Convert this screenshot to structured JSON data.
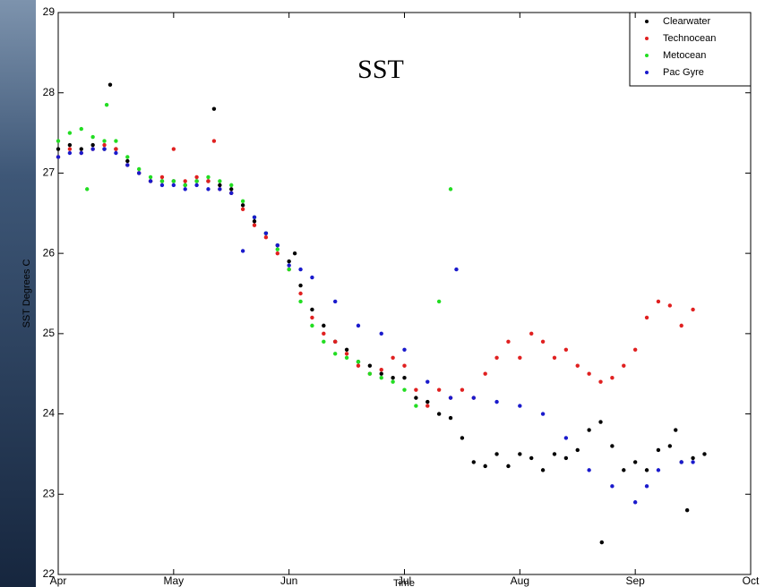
{
  "chart_data": {
    "type": "scatter",
    "title": "SST",
    "x_label": "Time",
    "y_label": "SST Degrees C",
    "xlim": [
      4,
      10
    ],
    "xticks": [
      {
        "value": 4,
        "label": "Apr"
      },
      {
        "value": 5,
        "label": "May"
      },
      {
        "value": 6,
        "label": "Jun"
      },
      {
        "value": 7,
        "label": "Jul"
      },
      {
        "value": 8,
        "label": "Aug"
      },
      {
        "value": 9,
        "label": "Sep"
      },
      {
        "value": 10,
        "label": "Oct"
      }
    ],
    "ylim": [
      22,
      29
    ],
    "yticks": [
      22,
      23,
      24,
      25,
      26,
      27,
      28,
      29
    ],
    "legend": "upper right",
    "series": [
      {
        "name": "Clearwater",
        "color": "#000000",
        "x": [
          4.0,
          4.1,
          4.2,
          4.3,
          4.4,
          4.45,
          4.5,
          4.6,
          4.7,
          4.8,
          4.9,
          5.0,
          5.1,
          5.2,
          5.3,
          5.35,
          5.4,
          5.5,
          5.6,
          5.7,
          5.8,
          5.9,
          6.0,
          6.05,
          6.1,
          6.2,
          6.3,
          6.4,
          6.5,
          6.6,
          6.7,
          6.8,
          6.9,
          7.0,
          7.1,
          7.2,
          7.3,
          7.4,
          7.5,
          7.6,
          7.7,
          7.8,
          7.9,
          8.0,
          8.1,
          8.2,
          8.3,
          8.4,
          8.5,
          8.6,
          8.7,
          8.71,
          8.8,
          8.9,
          9.0,
          9.1,
          9.2,
          9.3,
          9.35,
          9.4,
          9.45,
          9.5,
          9.6
        ],
        "values": [
          27.3,
          27.35,
          27.3,
          27.35,
          27.3,
          28.1,
          27.3,
          27.15,
          27.0,
          26.9,
          26.9,
          26.9,
          26.85,
          26.9,
          26.9,
          27.8,
          26.85,
          26.8,
          26.6,
          26.4,
          26.25,
          26.1,
          25.9,
          26.0,
          25.6,
          25.3,
          25.1,
          24.9,
          24.8,
          24.65,
          24.6,
          24.5,
          24.45,
          24.45,
          24.2,
          24.15,
          24.0,
          23.95,
          23.7,
          23.4,
          23.35,
          23.5,
          23.35,
          23.5,
          23.45,
          23.3,
          23.5,
          23.45,
          23.55,
          23.8,
          23.9,
          22.4,
          23.6,
          23.3,
          23.4,
          23.3,
          23.55,
          23.6,
          23.8,
          23.4,
          22.8,
          23.45,
          23.5
        ]
      },
      {
        "name": "Technocean",
        "color": "#e02020",
        "x": [
          4.0,
          4.1,
          4.2,
          4.3,
          4.4,
          4.5,
          4.6,
          4.7,
          4.8,
          4.9,
          5.0,
          5.1,
          5.2,
          5.3,
          5.35,
          5.4,
          5.5,
          5.6,
          5.7,
          5.8,
          5.9,
          6.0,
          6.1,
          6.2,
          6.3,
          6.4,
          6.5,
          6.6,
          6.7,
          6.8,
          6.9,
          7.0,
          7.1,
          7.2,
          7.3,
          7.4,
          7.5,
          7.6,
          7.7,
          7.8,
          7.9,
          8.0,
          8.1,
          8.2,
          8.3,
          8.4,
          8.5,
          8.6,
          8.7,
          8.8,
          8.9,
          9.0,
          9.1,
          9.2,
          9.3,
          9.4,
          9.5
        ],
        "values": [
          27.2,
          27.3,
          27.25,
          27.3,
          27.35,
          27.3,
          27.1,
          27.0,
          26.9,
          26.95,
          27.3,
          26.9,
          26.95,
          26.9,
          27.4,
          26.8,
          26.75,
          26.55,
          26.35,
          26.2,
          26.0,
          25.8,
          25.5,
          25.2,
          25.0,
          24.9,
          24.75,
          24.6,
          24.5,
          24.55,
          24.7,
          24.6,
          24.3,
          24.1,
          24.3,
          24.2,
          24.3,
          24.2,
          24.5,
          24.7,
          24.9,
          24.7,
          25.0,
          24.9,
          24.7,
          24.8,
          24.6,
          24.5,
          24.4,
          24.45,
          24.6,
          24.8,
          25.2,
          25.4,
          25.35,
          25.1,
          25.3
        ]
      },
      {
        "name": "Metocean",
        "color": "#22dd22",
        "x": [
          4.0,
          4.1,
          4.2,
          4.25,
          4.3,
          4.4,
          4.42,
          4.5,
          4.6,
          4.7,
          4.8,
          4.9,
          5.0,
          5.1,
          5.2,
          5.3,
          5.4,
          5.5,
          5.6,
          5.7,
          5.8,
          5.9,
          6.0,
          6.1,
          6.2,
          6.3,
          6.4,
          6.5,
          6.6,
          6.7,
          6.8,
          6.9,
          7.0,
          7.1,
          7.3,
          7.4
        ],
        "values": [
          27.4,
          27.5,
          27.55,
          26.8,
          27.45,
          27.4,
          27.85,
          27.4,
          27.2,
          27.05,
          26.95,
          26.9,
          26.9,
          26.85,
          26.9,
          26.95,
          26.9,
          26.85,
          26.65,
          26.45,
          26.25,
          26.05,
          25.8,
          25.4,
          25.1,
          24.9,
          24.75,
          24.7,
          24.65,
          24.5,
          24.45,
          24.4,
          24.3,
          24.1,
          25.4,
          26.8
        ]
      },
      {
        "name": "Pac Gyre",
        "color": "#1a1acc",
        "x": [
          4.0,
          4.1,
          4.2,
          4.3,
          4.4,
          4.5,
          4.6,
          4.7,
          4.8,
          4.9,
          5.0,
          5.1,
          5.2,
          5.3,
          5.4,
          5.5,
          5.6,
          5.7,
          5.8,
          5.9,
          6.0,
          6.1,
          6.2,
          6.4,
          6.6,
          6.8,
          7.0,
          7.2,
          7.4,
          7.45,
          7.6,
          7.8,
          8.0,
          8.2,
          8.4,
          8.6,
          8.8,
          9.0,
          9.1,
          9.2,
          9.4,
          9.5
        ],
        "values": [
          27.2,
          27.25,
          27.25,
          27.3,
          27.3,
          27.25,
          27.1,
          27.0,
          26.9,
          26.85,
          26.85,
          26.8,
          26.85,
          26.8,
          26.8,
          26.75,
          26.03,
          26.45,
          26.25,
          26.1,
          25.85,
          25.8,
          25.7,
          25.4,
          25.1,
          25.0,
          24.8,
          24.4,
          24.2,
          25.8,
          24.2,
          24.15,
          24.1,
          24.0,
          23.7,
          23.3,
          23.1,
          22.9,
          23.1,
          23.3,
          23.4,
          23.4
        ]
      }
    ]
  }
}
